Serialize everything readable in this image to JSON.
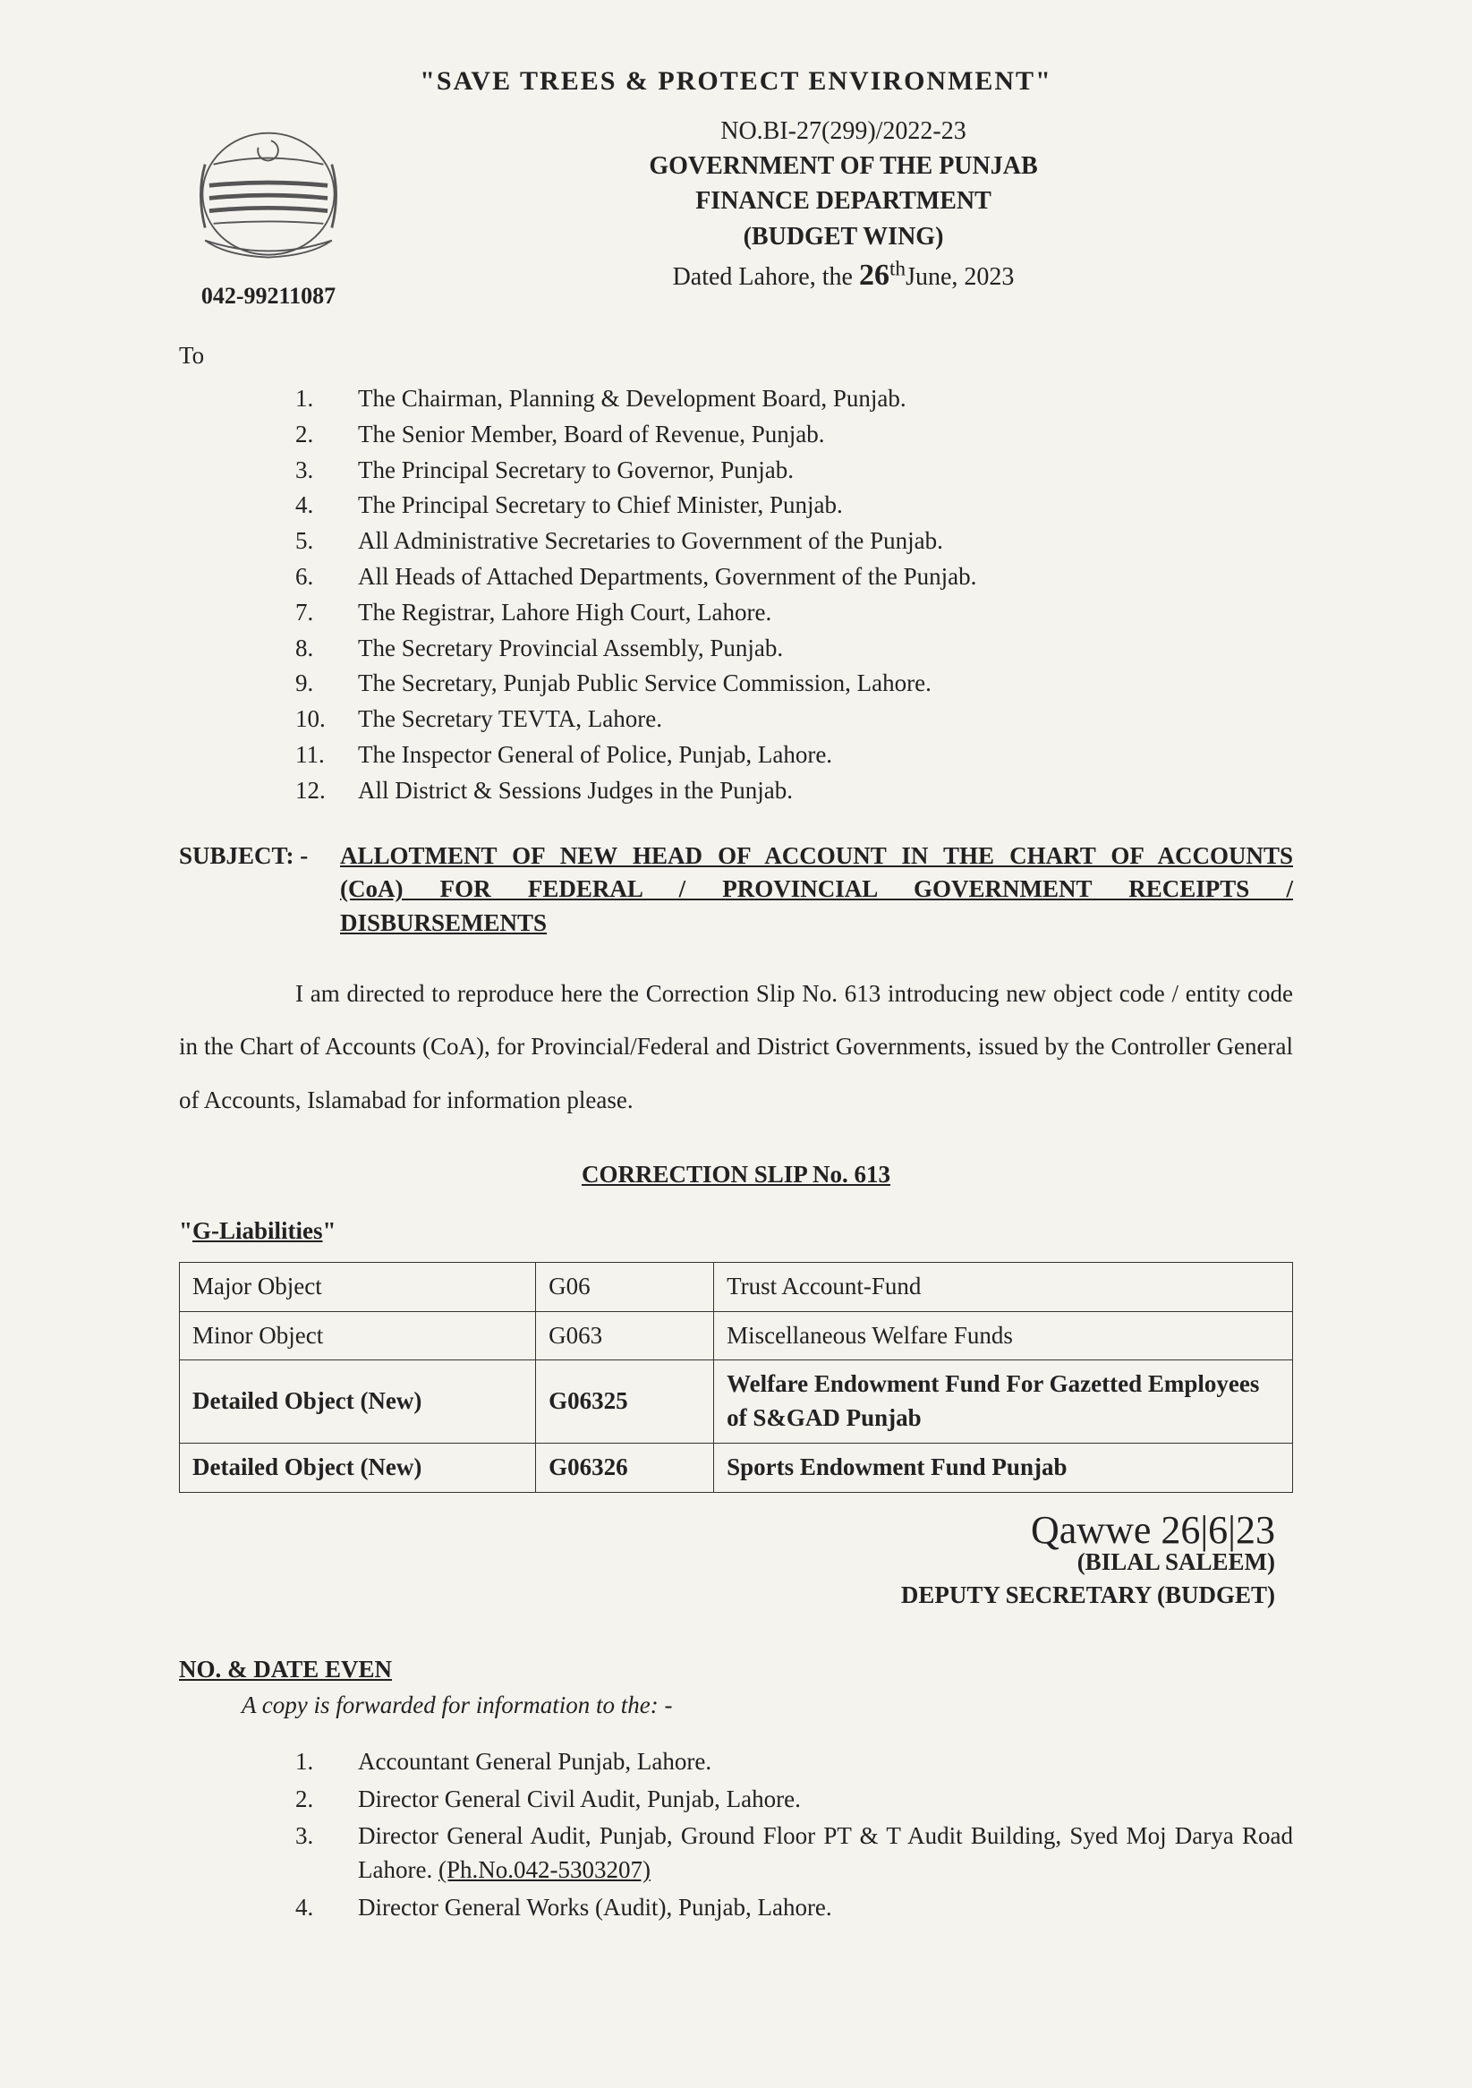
{
  "banner": "\"SAVE TREES & PROTECT ENVIRONMENT\"",
  "header": {
    "ref_no": "NO.BI-27(299)/2022-23",
    "gov": "GOVERNMENT OF THE PUNJAB",
    "dept": "FINANCE DEPARTMENT",
    "wing": "(BUDGET WING)",
    "date_prefix": "Dated Lahore, the ",
    "date_day": "26",
    "date_suffix": "th",
    "date_rest": "June, 2023",
    "phone": "042-99211087"
  },
  "to_label": "To",
  "recipients": [
    "The Chairman, Planning & Development Board, Punjab.",
    "The Senior Member, Board of Revenue, Punjab.",
    "The Principal Secretary to Governor, Punjab.",
    "The Principal Secretary to Chief Minister, Punjab.",
    "All Administrative Secretaries to Government of the Punjab.",
    "All Heads of Attached Departments, Government of the Punjab.",
    "The Registrar, Lahore High Court, Lahore.",
    "The Secretary Provincial Assembly, Punjab.",
    "The Secretary, Punjab Public Service Commission, Lahore.",
    "The Secretary TEVTA, Lahore.",
    "The Inspector General of Police, Punjab, Lahore.",
    "All District & Sessions Judges in the Punjab."
  ],
  "subject_label": "SUBJECT: -",
  "subject_text": "ALLOTMENT OF NEW HEAD OF ACCOUNT IN THE CHART OF ACCOUNTS (CoA) FOR FEDERAL / PROVINCIAL GOVERNMENT RECEIPTS / DISBURSEMENTS",
  "body": "I am directed to reproduce here the Correction Slip No. 613 introducing new object code / entity code in the Chart of Accounts (CoA), for Provincial/Federal and District Governments, issued by the Controller General of Accounts, Islamabad for information please.",
  "correction_title": "CORRECTION SLIP No. 613",
  "gliab_prefix": "\"",
  "gliab_text": "G-Liabilities",
  "gliab_suffix": "\"",
  "table": {
    "rows": [
      {
        "bold": false,
        "c1": "Major Object",
        "c2": "G06",
        "c3": "Trust Account-Fund"
      },
      {
        "bold": false,
        "c1": "Minor Object",
        "c2": "G063",
        "c3": "Miscellaneous Welfare Funds"
      },
      {
        "bold": true,
        "c1": "Detailed Object (New)",
        "c2": "G06325",
        "c3": "Welfare Endowment Fund For Gazetted Employees of S&GAD Punjab"
      },
      {
        "bold": true,
        "c1": "Detailed Object (New)",
        "c2": "G06326",
        "c3": "Sports Endowment Fund Punjab"
      }
    ]
  },
  "signature": {
    "scribble": "Qawwe  26|6|23",
    "name": "(BILAL SALEEM)",
    "title": "DEPUTY SECRETARY (BUDGET)"
  },
  "endorse": {
    "head": "NO. & DATE EVEN",
    "sub": "A copy is forwarded for information to the: -",
    "cc": [
      {
        "text": "Accountant General Punjab, Lahore."
      },
      {
        "text": "Director General Civil Audit, Punjab, Lahore."
      },
      {
        "text_pre": "Director General Audit, Punjab, Ground Floor PT & T Audit Building, Syed Moj Darya Road Lahore. ",
        "text_u": "(Ph.No.042-5303207)"
      },
      {
        "text": "Director General Works (Audit), Punjab, Lahore."
      }
    ]
  },
  "colors": {
    "page_bg": "#f5f3ee",
    "text": "#222222",
    "border": "#333333"
  }
}
